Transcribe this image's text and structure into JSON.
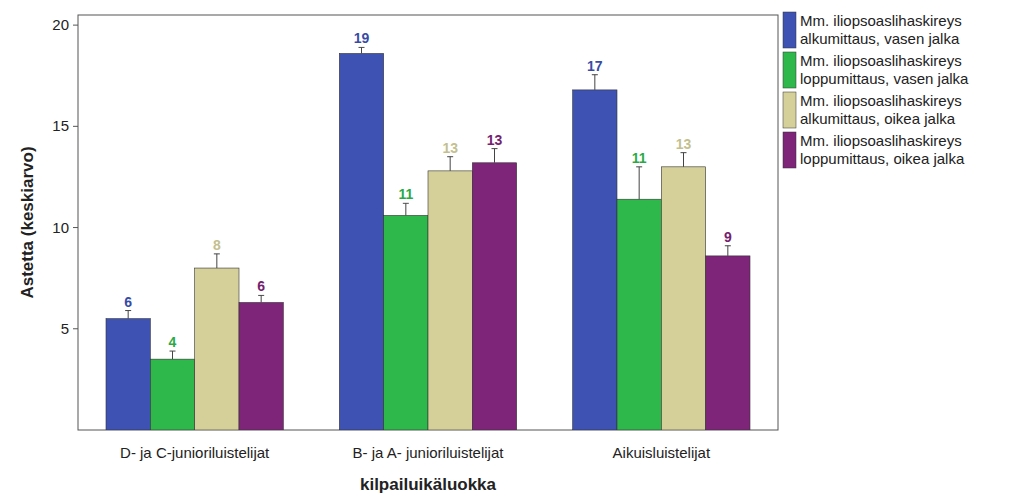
{
  "chart_data": {
    "type": "bar",
    "x_label": "kilpailuikäluokka",
    "y_label": "Astetta (keskiarvo)",
    "categories": [
      "D- ja C-junioriluistelijat",
      "B- ja A- junioriluistelijat",
      "Aikuisluistelijat"
    ],
    "series": [
      {
        "name": "Mm. iliopsoaslihaskireys alkumittaus, vasen jalka",
        "color": "#3d52b3",
        "values": [
          5.5,
          18.6,
          16.8
        ],
        "value_labels": [
          "6",
          "19",
          "17"
        ],
        "errors": [
          0.4,
          0.3,
          0.75
        ]
      },
      {
        "name": "Mm. iliopsoaslihaskireys loppumittaus, vasen jalka",
        "color": "#2eb84b",
        "values": [
          3.5,
          10.6,
          11.4
        ],
        "value_labels": [
          "4",
          "11",
          "11"
        ],
        "errors": [
          0.4,
          0.6,
          1.6
        ]
      },
      {
        "name": "Mm. iliopsoaslihaskireys alkumittaus, oikea jalka",
        "color": "#d5d09a",
        "values": [
          8.0,
          12.8,
          13.0
        ],
        "value_labels": [
          "8",
          "13",
          "13"
        ],
        "errors": [
          0.7,
          0.7,
          0.7
        ]
      },
      {
        "name": "Mm. iliopsoaslihaskireys loppumittaus, oikea jalka",
        "color": "#7e2579",
        "values": [
          6.3,
          13.2,
          8.6
        ],
        "value_labels": [
          "6",
          "13",
          "9"
        ],
        "errors": [
          0.35,
          0.7,
          0.5
        ]
      }
    ],
    "ylim": [
      0,
      20.5
    ],
    "yticks": [
      5,
      10,
      15,
      20
    ],
    "grid": false,
    "legend": "right",
    "data_labels": true
  }
}
